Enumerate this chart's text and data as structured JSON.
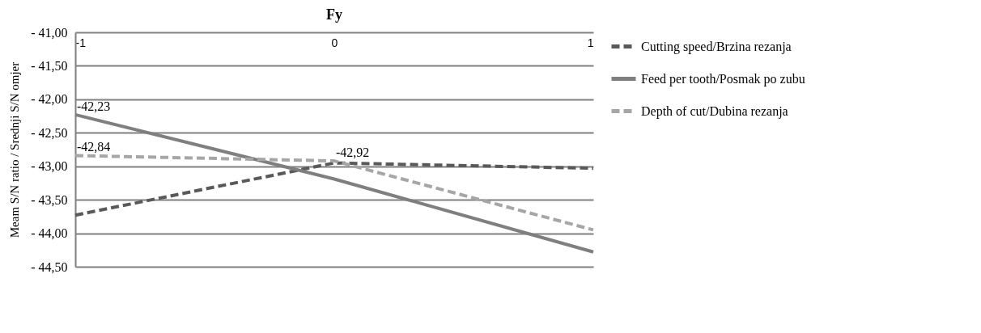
{
  "chart_data": {
    "type": "line",
    "title": "Fy",
    "ylabel": "Meam S/N ratio / Srednji S/N omjer",
    "x": [
      -1,
      0,
      1
    ],
    "xlim": [
      -1,
      1
    ],
    "xticks": [
      -1,
      0,
      1
    ],
    "ylim": [
      -44.5,
      -41
    ],
    "yticks": [
      {
        "value": -41,
        "label": "- 41,00"
      },
      {
        "value": -41.5,
        "label": "- 41,50"
      },
      {
        "value": -42,
        "label": "- 42,00"
      },
      {
        "value": -42.5,
        "label": "- 42,50"
      },
      {
        "value": -43,
        "label": "- 43,00"
      },
      {
        "value": -43.5,
        "label": "- 43,50"
      },
      {
        "value": -44,
        "label": "- 44,00"
      },
      {
        "value": -44.5,
        "label": "- 44,50"
      }
    ],
    "grid": "y",
    "legend": "right",
    "series": [
      {
        "name": "Cutting speed/Brzina rezanja",
        "color": "#595959",
        "line_style": "dashed",
        "values": [
          -43.73,
          -42.95,
          -43.03
        ]
      },
      {
        "name": "Feed per tooth/Posmak po zubu",
        "color": "#7f7f7f",
        "line_style": "solid",
        "values": [
          -42.23,
          -43.19,
          -44.28
        ],
        "value_labels": [
          "-42,23",
          null,
          null
        ]
      },
      {
        "name": "Depth of cut/Dubina rezanja",
        "color": "#a6a6a6",
        "line_style": "dashed",
        "values": [
          -42.84,
          -42.92,
          -43.95
        ],
        "value_labels": [
          "-42,84",
          "-42,92",
          null
        ]
      }
    ]
  }
}
